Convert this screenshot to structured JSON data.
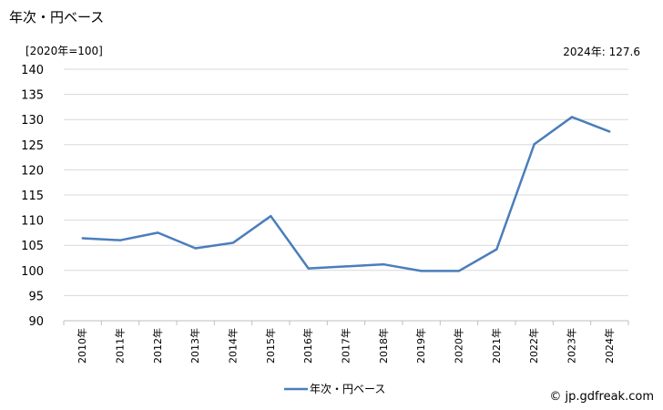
{
  "header": {
    "title": "年次・円ベース",
    "unit": "[2020年=100]",
    "latest": "2024年: 127.6"
  },
  "footer": {
    "credit": "© jp.gdfreak.com"
  },
  "colors": {
    "series": "#4a7ebb",
    "grid": "#d9d9d9",
    "axis": "#bfbfbf"
  },
  "chart_data": {
    "type": "line",
    "categories": [
      "2010年",
      "2011年",
      "2012年",
      "2013年",
      "2014年",
      "2015年",
      "2016年",
      "2017年",
      "2018年",
      "2019年",
      "2020年",
      "2021年",
      "2022年",
      "2023年",
      "2024年"
    ],
    "series": [
      {
        "name": "年次・円ベース",
        "values": [
          106.4,
          106.0,
          107.5,
          104.4,
          105.5,
          110.8,
          100.4,
          100.8,
          101.2,
          99.9,
          99.9,
          104.2,
          125.1,
          130.5,
          127.6
        ]
      }
    ],
    "ylim": [
      90,
      140
    ],
    "yticks": [
      90,
      95,
      100,
      105,
      110,
      115,
      120,
      125,
      130,
      135,
      140
    ],
    "grid": true,
    "legend": "bottom-center"
  }
}
